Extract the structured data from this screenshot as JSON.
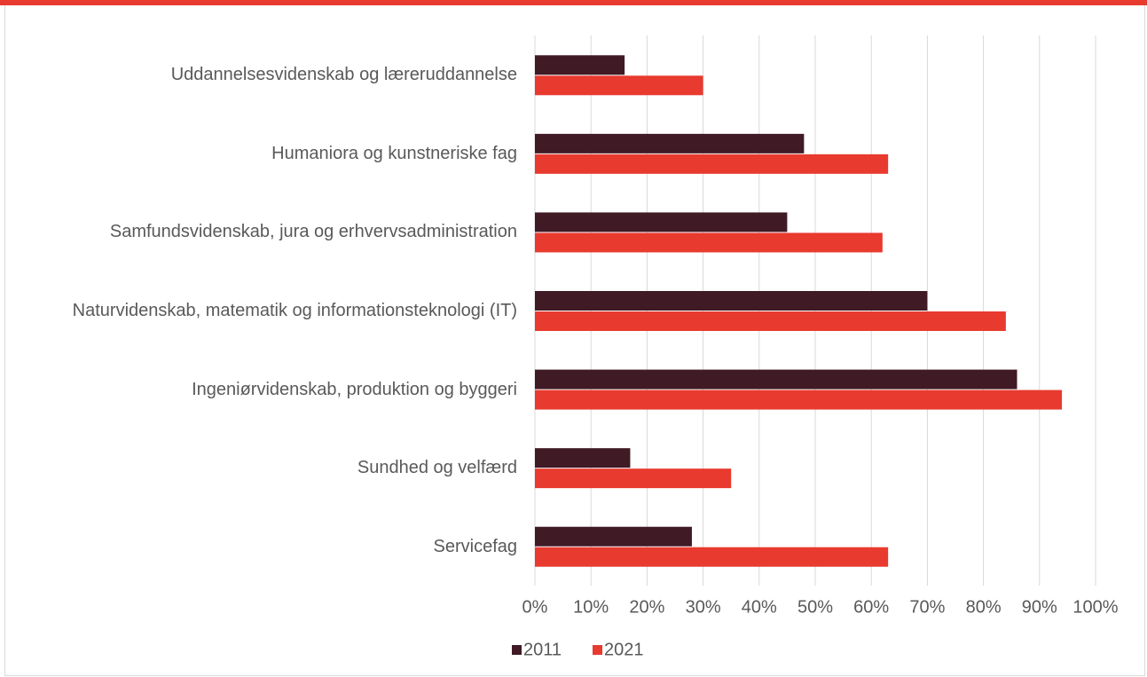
{
  "chart_data": {
    "type": "bar",
    "orientation": "horizontal",
    "categories": [
      "Uddannelsesvidenskab og læreruddannelse",
      "Humaniora og kunstneriske fag",
      "Samfundsvidenskab, jura og erhvervsadministration",
      "Naturvidenskab, matematik og informationsteknologi (IT)",
      "Ingeniørvidenskab, produktion og byggeri",
      "Sundhed og velfærd",
      "Servicefag"
    ],
    "series": [
      {
        "name": "2011",
        "color": "#401a25",
        "values": [
          16,
          48,
          45,
          70,
          86,
          17,
          28
        ]
      },
      {
        "name": "2021",
        "color": "#e83a2f",
        "values": [
          30,
          63,
          62,
          84,
          94,
          35,
          63
        ]
      }
    ],
    "xlim": [
      0,
      100
    ],
    "xticks": [
      {
        "value": 0,
        "label": "0%"
      },
      {
        "value": 10,
        "label": "10%"
      },
      {
        "value": 20,
        "label": "20%"
      },
      {
        "value": 30,
        "label": "30%"
      },
      {
        "value": 40,
        "label": "40%"
      },
      {
        "value": 50,
        "label": "50%"
      },
      {
        "value": 60,
        "label": "60%"
      },
      {
        "value": 70,
        "label": "70%"
      },
      {
        "value": 80,
        "label": "80%"
      },
      {
        "value": 90,
        "label": "90%"
      },
      {
        "value": 100,
        "label": "100%"
      }
    ],
    "grid": true,
    "legend": "bottom"
  }
}
